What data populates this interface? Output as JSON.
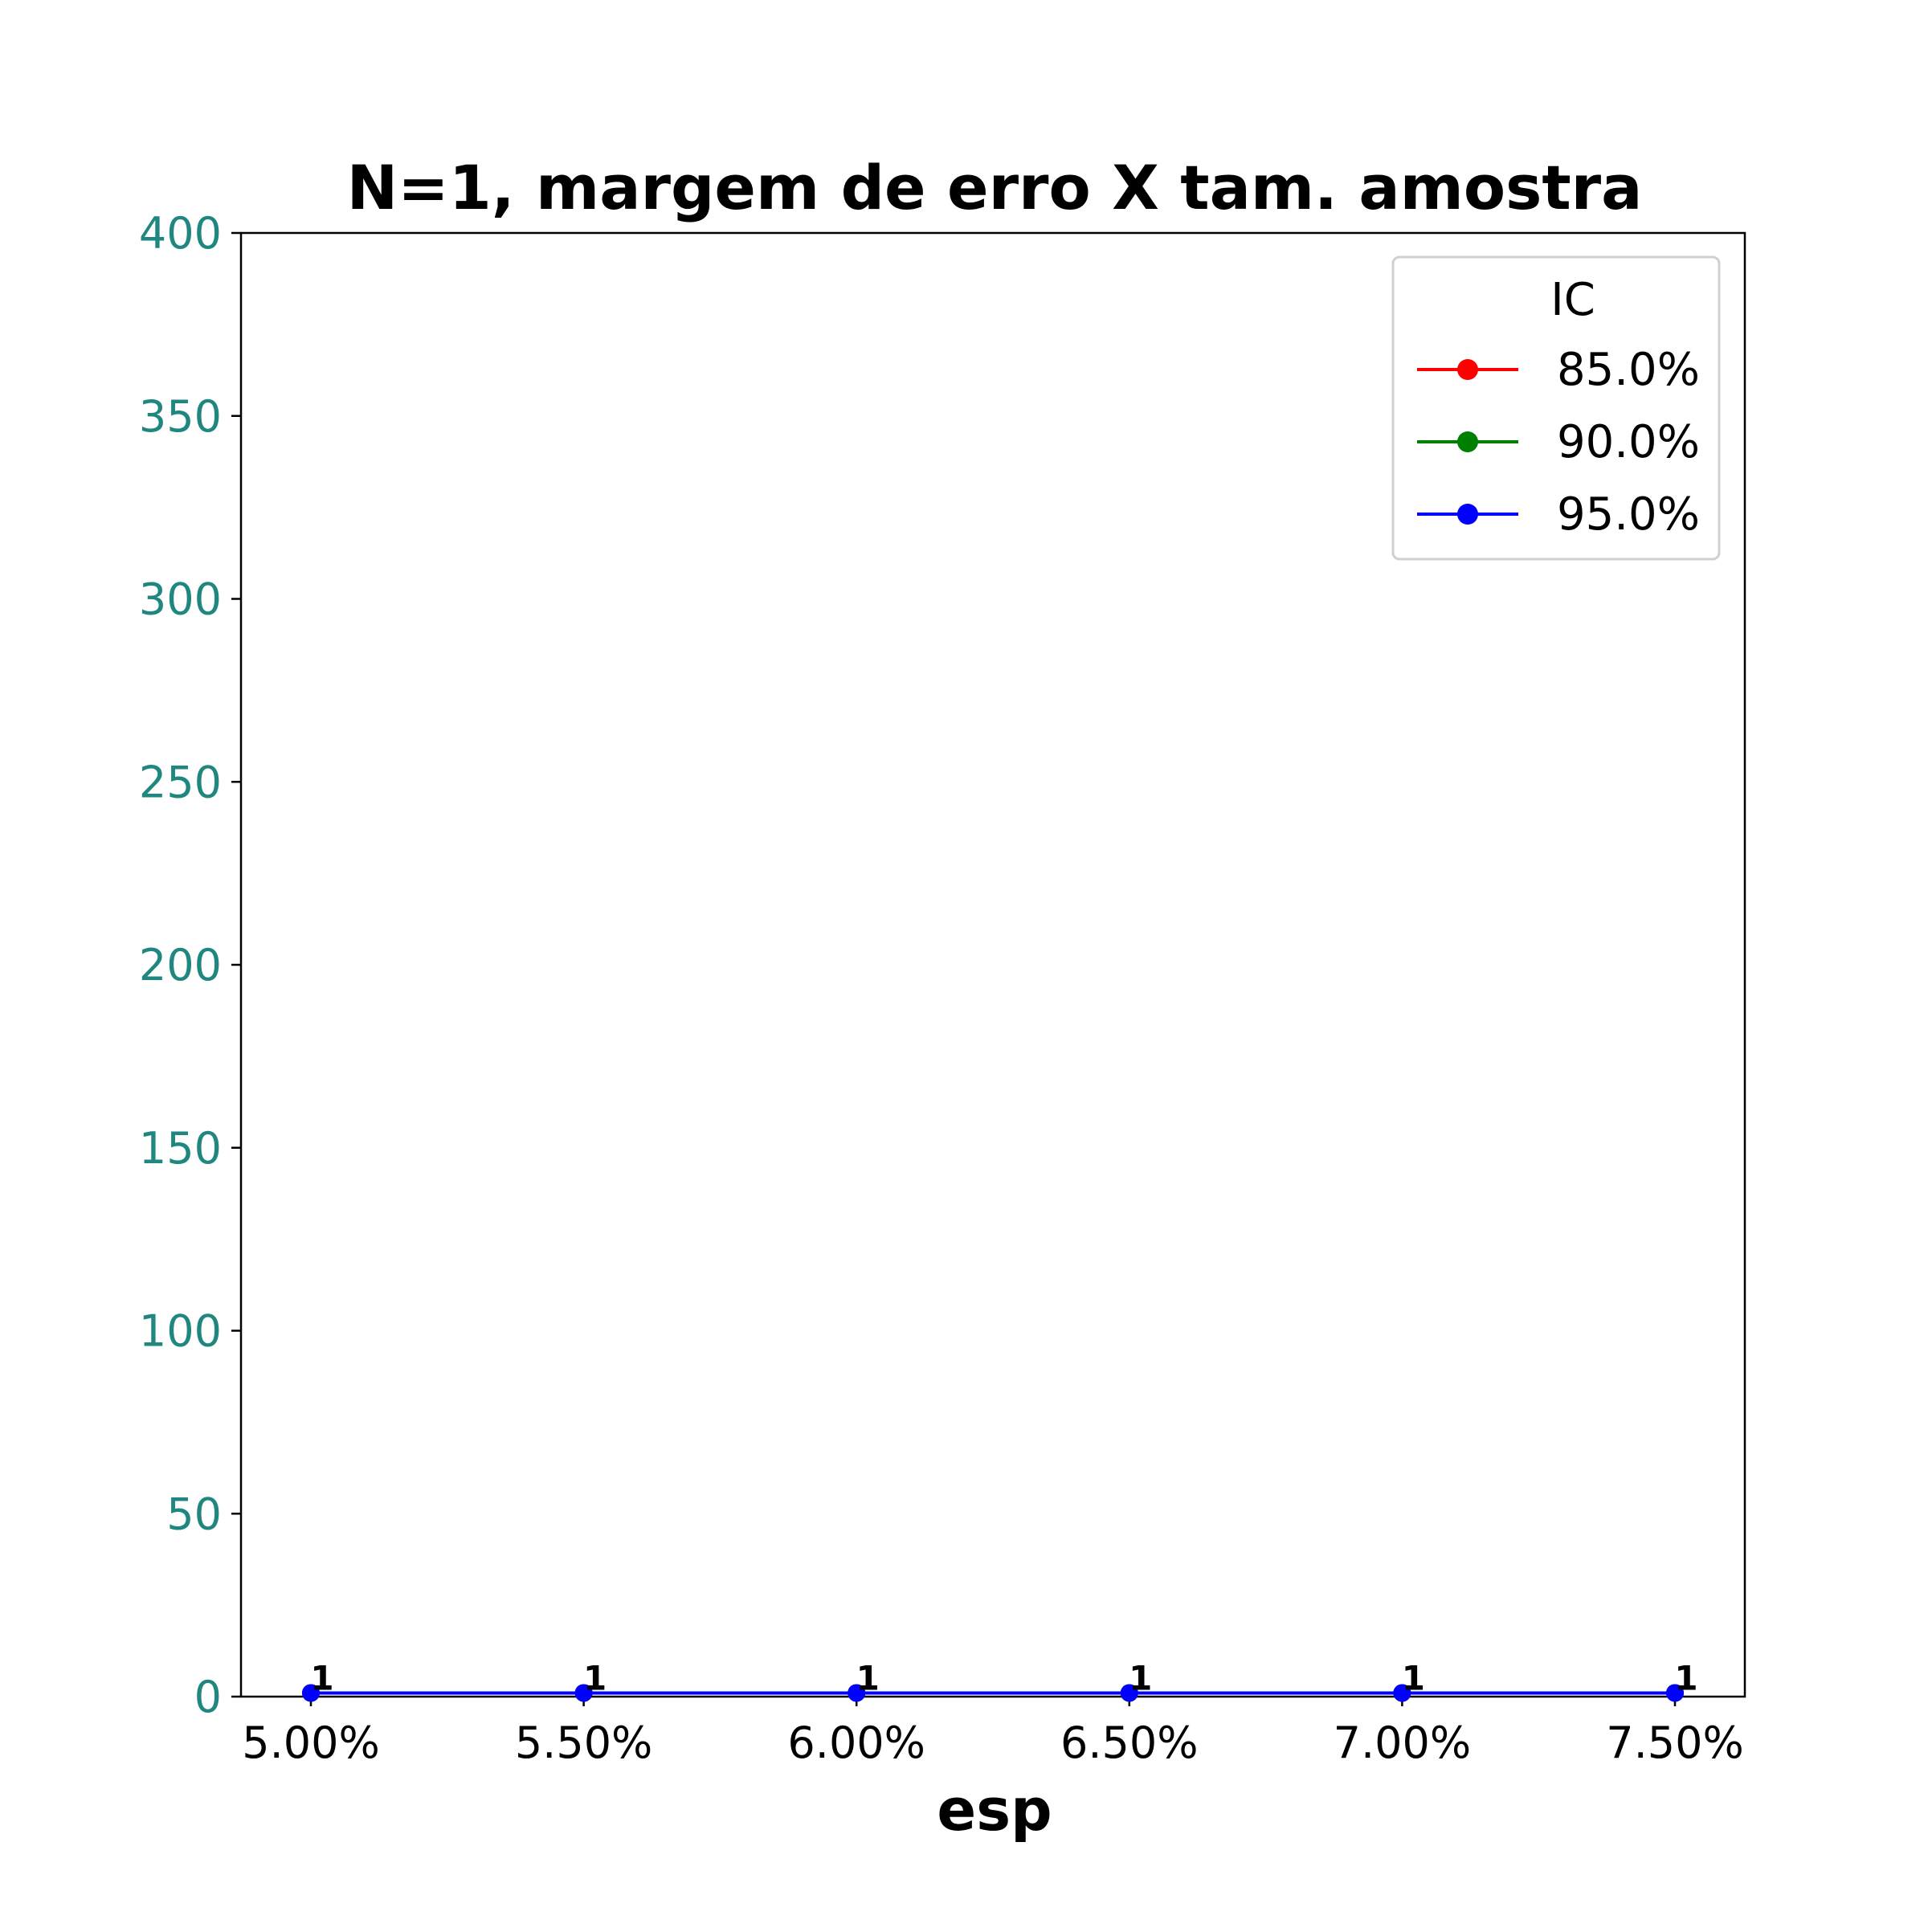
{
  "chart_data": {
    "type": "line",
    "title": "N=1, margem de erro X tam. amostra",
    "xlabel": "esp",
    "ylabel": "",
    "x": [
      0.05,
      0.055,
      0.06,
      0.065,
      0.07,
      0.075
    ],
    "x_tick_labels": [
      "5.00%",
      "5.50%",
      "6.00%",
      "6.50%",
      "7.00%",
      "7.50%"
    ],
    "ylim": [
      0,
      400
    ],
    "y_ticks": [
      0,
      50,
      100,
      150,
      200,
      250,
      300,
      350,
      400
    ],
    "y_tick_labels": [
      "0",
      "50",
      "100",
      "150",
      "200",
      "250",
      "300",
      "350",
      "400"
    ],
    "series": [
      {
        "name": "85.0%",
        "color": "#ff0000",
        "values": [
          1,
          1,
          1,
          1,
          1,
          1
        ]
      },
      {
        "name": "90.0%",
        "color": "#008000",
        "values": [
          1,
          1,
          1,
          1,
          1,
          1
        ]
      },
      {
        "name": "95.0%",
        "color": "#0000ff",
        "values": [
          1,
          1,
          1,
          1,
          1,
          1
        ]
      }
    ],
    "data_labels": [
      "1",
      "1",
      "1",
      "1",
      "1",
      "1"
    ],
    "legend": {
      "title": "IC",
      "position": "top-right"
    },
    "grid": false,
    "y_tick_color": "#1f877f"
  }
}
